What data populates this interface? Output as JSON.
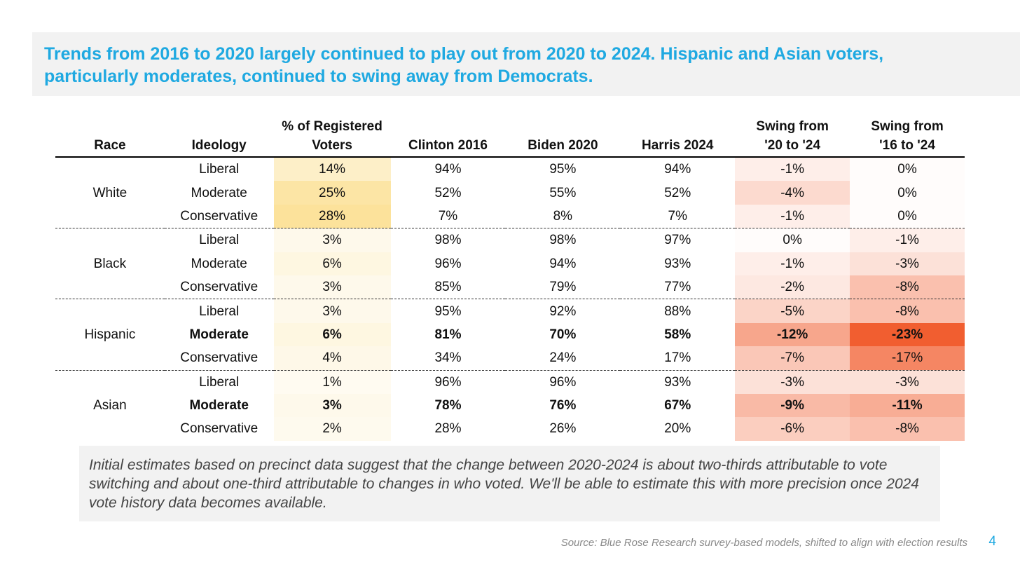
{
  "title": "Trends from 2016 to 2020 largely continued to play out from 2020 to 2024. Hispanic and Asian voters, particularly moderates, continued to swing away from Democrats.",
  "table": {
    "headers": {
      "race": "Race",
      "ideology": "Ideology",
      "registered_line1": "% of Registered",
      "registered_line2": "Voters",
      "clinton": "Clinton 2016",
      "biden": "Biden 2020",
      "harris": "Harris 2024",
      "swing20_line1": "Swing from",
      "swing20_line2": "'20 to '24",
      "swing16_line1": "Swing from",
      "swing16_line2": "'16 to '24"
    },
    "groups": [
      {
        "race": "White",
        "rows": [
          {
            "ideology": "Liberal",
            "registered": "14%",
            "clinton": "94%",
            "biden": "95%",
            "harris": "94%",
            "swing20": "-1%",
            "swing16": "0%",
            "bold": false
          },
          {
            "ideology": "Moderate",
            "registered": "25%",
            "clinton": "52%",
            "biden": "55%",
            "harris": "52%",
            "swing20": "-4%",
            "swing16": "0%",
            "bold": false
          },
          {
            "ideology": "Conservative",
            "registered": "28%",
            "clinton": "7%",
            "biden": "8%",
            "harris": "7%",
            "swing20": "-1%",
            "swing16": "0%",
            "bold": false
          }
        ]
      },
      {
        "race": "Black",
        "rows": [
          {
            "ideology": "Liberal",
            "registered": "3%",
            "clinton": "98%",
            "biden": "98%",
            "harris": "97%",
            "swing20": "0%",
            "swing16": "-1%",
            "bold": false
          },
          {
            "ideology": "Moderate",
            "registered": "6%",
            "clinton": "96%",
            "biden": "94%",
            "harris": "93%",
            "swing20": "-1%",
            "swing16": "-3%",
            "bold": false
          },
          {
            "ideology": "Conservative",
            "registered": "3%",
            "clinton": "85%",
            "biden": "79%",
            "harris": "77%",
            "swing20": "-2%",
            "swing16": "-8%",
            "bold": false
          }
        ]
      },
      {
        "race": "Hispanic",
        "rows": [
          {
            "ideology": "Liberal",
            "registered": "3%",
            "clinton": "95%",
            "biden": "92%",
            "harris": "88%",
            "swing20": "-5%",
            "swing16": "-8%",
            "bold": false
          },
          {
            "ideology": "Moderate",
            "registered": "6%",
            "clinton": "81%",
            "biden": "70%",
            "harris": "58%",
            "swing20": "-12%",
            "swing16": "-23%",
            "bold": true
          },
          {
            "ideology": "Conservative",
            "registered": "4%",
            "clinton": "34%",
            "biden": "24%",
            "harris": "17%",
            "swing20": "-7%",
            "swing16": "-17%",
            "bold": false
          }
        ]
      },
      {
        "race": "Asian",
        "rows": [
          {
            "ideology": "Liberal",
            "registered": "1%",
            "clinton": "96%",
            "biden": "96%",
            "harris": "93%",
            "swing20": "-3%",
            "swing16": "-3%",
            "bold": false
          },
          {
            "ideology": "Moderate",
            "registered": "3%",
            "clinton": "78%",
            "biden": "76%",
            "harris": "67%",
            "swing20": "-9%",
            "swing16": "-11%",
            "bold": true
          },
          {
            "ideology": "Conservative",
            "registered": "2%",
            "clinton": "28%",
            "biden": "26%",
            "harris": "20%",
            "swing20": "-6%",
            "swing16": "-8%",
            "bold": false
          }
        ]
      }
    ]
  },
  "note": "Initial estimates based on precinct data suggest that the change between 2020-2024 is about two-thirds attributable to vote switching and about one-third attributable to changes in who voted. We'll be able to estimate this with more precision once 2024 vote history data becomes available.",
  "source": "Source: Blue Rose Research survey-based models, shifted to align with election results",
  "page_number": "4",
  "colors": {
    "accent": "#1fa9e1",
    "registered_heat": "#fbd97a",
    "swing_heat": "#f0501e"
  }
}
